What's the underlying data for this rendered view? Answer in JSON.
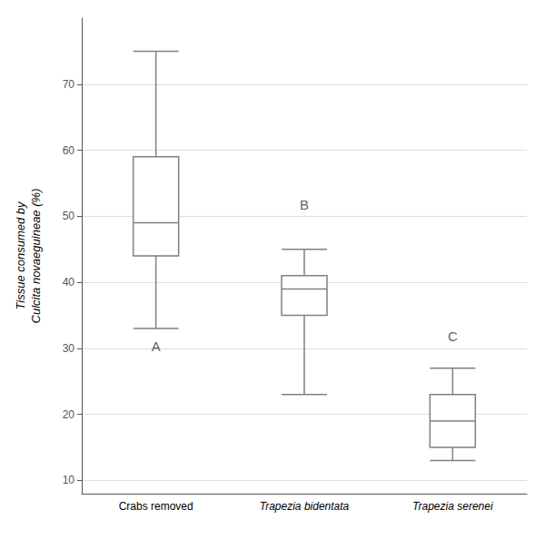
{
  "chart_data": {
    "type": "box",
    "categories": [
      "Crabs removed",
      "Trapezia bidentata",
      "Trapezia serenei"
    ],
    "boxes": [
      {
        "whislo": 33.0,
        "q1": 44.0,
        "median": 49.0,
        "q3": 59.0,
        "whishi": 75.0
      },
      {
        "whislo": 23.0,
        "q1": 35.0,
        "median": 39.0,
        "q3": 41.0,
        "whishi": 45.0
      },
      {
        "whislo": 13.0,
        "q1": 15.0,
        "median": 19.0,
        "q3": 23.0,
        "whishi": 27.0
      }
    ],
    "y_label": "Tissue consumed by\nCulcita novaeguineae (%)",
    "annotations": [
      {
        "text": "A",
        "category": "Crabs removed",
        "y": 29.0
      },
      {
        "text": "B",
        "category": "Trapezia bidentata",
        "y": 50.5
      },
      {
        "text": "C",
        "category": "Trapezia serenei",
        "y": 30.5
      }
    ],
    "ylim": [
      8,
      80
    ],
    "yticks": [
      10,
      20,
      30,
      40,
      50,
      60,
      70
    ],
    "grid": true,
    "color": "#808080"
  }
}
